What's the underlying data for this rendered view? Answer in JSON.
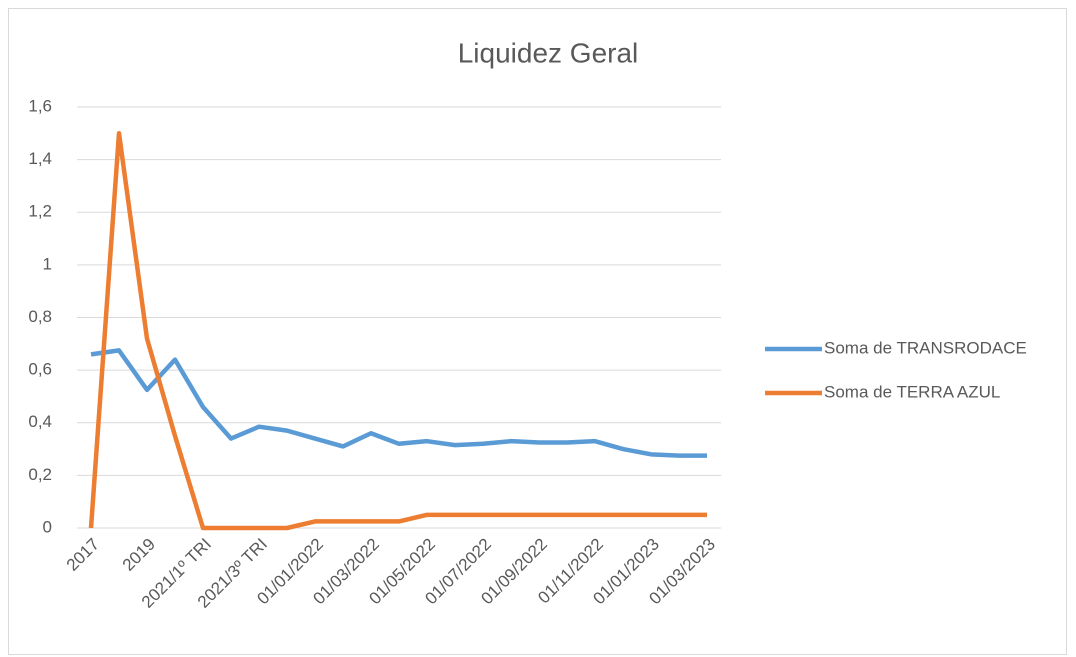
{
  "chart_data": {
    "type": "line",
    "title": "Liquidez Geral",
    "categories": [
      "2017",
      null,
      "2019",
      null,
      "2021/1º TRI",
      null,
      "2021/3º TRI",
      null,
      "01/01/2022",
      null,
      "01/03/2022",
      null,
      "01/05/2022",
      null,
      "01/07/2022",
      null,
      "01/09/2022",
      null,
      "01/11/2022",
      null,
      "01/01/2023",
      null,
      "01/03/2023"
    ],
    "series": [
      {
        "name": "Soma de TRANSRODACE",
        "color": "#5b9bd5",
        "values": [
          0.66,
          0.675,
          0.525,
          0.64,
          0.46,
          0.34,
          0.385,
          0.37,
          0.34,
          0.31,
          0.36,
          0.32,
          0.33,
          0.315,
          0.32,
          0.33,
          0.325,
          0.325,
          0.33,
          0.3,
          0.28,
          0.275,
          0.275
        ]
      },
      {
        "name": "Soma de TERRA AZUL",
        "color": "#ed7d31",
        "values": [
          0,
          1.5,
          0.72,
          0.35,
          0,
          0,
          0,
          0,
          0.025,
          0.025,
          0.025,
          0.025,
          0.05,
          0.05,
          0.05,
          0.05,
          0.05,
          0.05,
          0.05,
          0.05,
          0.05,
          0.05,
          0.05
        ]
      }
    ],
    "ylim": [
      0,
      1.6
    ],
    "yticks": [
      0,
      {
        "value": 0.2,
        "label": "0,2"
      },
      {
        "value": 0.4,
        "label": "0,4"
      },
      {
        "value": 0.6,
        "label": "0,6"
      },
      {
        "value": 0.8,
        "label": "0,8"
      },
      1,
      {
        "value": 1.2,
        "label": "1,2"
      },
      {
        "value": 1.4,
        "label": "1,4"
      },
      {
        "value": 1.6,
        "label": "1,6"
      }
    ],
    "grid": true,
    "legend": "right"
  }
}
